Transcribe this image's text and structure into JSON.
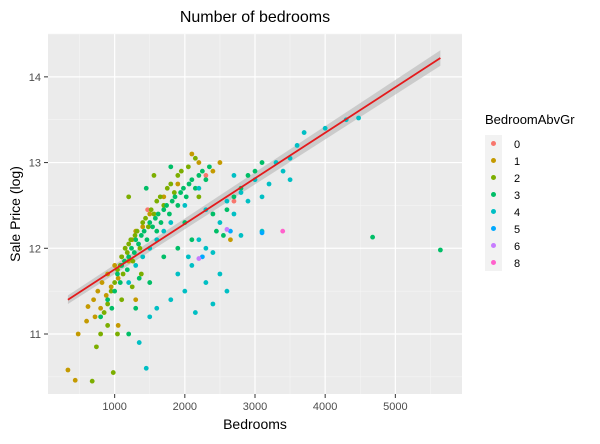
{
  "chart_data": {
    "type": "scatter",
    "title": "Number of bedrooms",
    "xlabel": "Bedrooms",
    "ylabel": "Sale Price (log)",
    "xlim": [
      50,
      5950
    ],
    "ylim": [
      10.3,
      14.5
    ],
    "x_ticks": [
      1000,
      2000,
      3000,
      4000,
      5000
    ],
    "y_ticks": [
      11,
      12,
      13,
      14
    ],
    "grid": true,
    "legend": {
      "title": "BedroomAbvGr",
      "placement": "right",
      "entries": [
        {
          "label": "0",
          "color": "#F8766D"
        },
        {
          "label": "1",
          "color": "#C49A00"
        },
        {
          "label": "2",
          "color": "#7CAE00"
        },
        {
          "label": "3",
          "color": "#00BE67"
        },
        {
          "label": "4",
          "color": "#00BFC4"
        },
        {
          "label": "5",
          "color": "#00A9FF"
        },
        {
          "label": "6",
          "color": "#C77CFF"
        },
        {
          "label": "8",
          "color": "#FF61CC"
        }
      ]
    },
    "regression": {
      "color": "#E41A1C",
      "x": [
        334,
        5642
      ],
      "y": [
        11.4,
        14.22
      ],
      "band_halfwidth_start": 0.05,
      "band_halfwidth_end": 0.09
    },
    "series": [
      {
        "name": "0",
        "color": "#F8766D",
        "points": [
          [
            1470,
            12.45
          ],
          [
            2300,
            12.85
          ],
          [
            2700,
            12.55
          ]
        ]
      },
      {
        "name": "1",
        "color": "#C49A00",
        "points": [
          [
            334,
            10.58
          ],
          [
            438,
            10.46
          ],
          [
            480,
            11.0
          ],
          [
            600,
            11.15
          ],
          [
            620,
            11.32
          ],
          [
            700,
            11.4
          ],
          [
            720,
            11.2
          ],
          [
            760,
            11.5
          ],
          [
            800,
            11.3
          ],
          [
            820,
            11.6
          ],
          [
            880,
            11.45
          ],
          [
            900,
            11.7
          ],
          [
            950,
            11.55
          ],
          [
            1000,
            11.8
          ],
          [
            1050,
            11.65
          ],
          [
            1100,
            11.9
          ],
          [
            1150,
            12.0
          ],
          [
            1200,
            11.85
          ],
          [
            1250,
            12.1
          ],
          [
            1300,
            12.2
          ],
          [
            1400,
            12.25
          ],
          [
            1500,
            12.4
          ],
          [
            1700,
            12.6
          ],
          [
            1900,
            12.75
          ],
          [
            2100,
            13.1
          ],
          [
            2200,
            13.0
          ],
          [
            2400,
            12.9
          ],
          [
            2500,
            13.0
          ],
          [
            2650,
            12.1
          ],
          [
            1300,
            11.4
          ],
          [
            1050,
            11.1
          ]
        ]
      },
      {
        "name": "2",
        "color": "#7CAE00",
        "points": [
          [
            680,
            10.45
          ],
          [
            740,
            10.85
          ],
          [
            800,
            11.0
          ],
          [
            850,
            11.25
          ],
          [
            900,
            11.35
          ],
          [
            950,
            11.5
          ],
          [
            980,
            10.55
          ],
          [
            1000,
            11.6
          ],
          [
            1040,
            11.75
          ],
          [
            1080,
            11.8
          ],
          [
            1100,
            11.9
          ],
          [
            1120,
            11.7
          ],
          [
            1150,
            12.0
          ],
          [
            1180,
            11.95
          ],
          [
            1200,
            12.05
          ],
          [
            1230,
            12.1
          ],
          [
            1260,
            11.85
          ],
          [
            1290,
            12.15
          ],
          [
            1320,
            12.2
          ],
          [
            1360,
            12.0
          ],
          [
            1400,
            12.3
          ],
          [
            1440,
            12.35
          ],
          [
            1480,
            12.25
          ],
          [
            1520,
            12.45
          ],
          [
            1560,
            12.4
          ],
          [
            1600,
            12.55
          ],
          [
            1650,
            12.6
          ],
          [
            1700,
            12.5
          ],
          [
            1750,
            12.7
          ],
          [
            1800,
            12.75
          ],
          [
            1850,
            12.65
          ],
          [
            1900,
            12.85
          ],
          [
            1950,
            12.9
          ],
          [
            2050,
            12.95
          ],
          [
            2150,
            13.05
          ],
          [
            2200,
            12.6
          ],
          [
            1250,
            11.55
          ],
          [
            1100,
            11.4
          ],
          [
            1380,
            11.7
          ],
          [
            1200,
            12.6
          ],
          [
            1560,
            12.85
          ],
          [
            1040,
            11.0
          ],
          [
            900,
            11.1
          ]
        ]
      },
      {
        "name": "3",
        "color": "#00BE67",
        "points": [
          [
            800,
            11.2
          ],
          [
            900,
            11.4
          ],
          [
            960,
            11.3
          ],
          [
            1000,
            11.5
          ],
          [
            1040,
            11.7
          ],
          [
            1080,
            11.6
          ],
          [
            1100,
            11.8
          ],
          [
            1140,
            11.85
          ],
          [
            1180,
            11.75
          ],
          [
            1200,
            11.9
          ],
          [
            1240,
            12.0
          ],
          [
            1280,
            11.95
          ],
          [
            1300,
            12.1
          ],
          [
            1340,
            12.05
          ],
          [
            1380,
            12.15
          ],
          [
            1420,
            12.2
          ],
          [
            1460,
            12.1
          ],
          [
            1500,
            12.3
          ],
          [
            1540,
            12.25
          ],
          [
            1580,
            12.35
          ],
          [
            1620,
            12.4
          ],
          [
            1660,
            12.3
          ],
          [
            1700,
            12.45
          ],
          [
            1740,
            12.5
          ],
          [
            1780,
            12.4
          ],
          [
            1820,
            12.55
          ],
          [
            1860,
            12.6
          ],
          [
            1900,
            12.5
          ],
          [
            1940,
            12.65
          ],
          [
            1980,
            12.7
          ],
          [
            2020,
            12.6
          ],
          [
            2060,
            12.75
          ],
          [
            2100,
            12.8
          ],
          [
            2150,
            12.7
          ],
          [
            2200,
            12.85
          ],
          [
            2250,
            12.9
          ],
          [
            2300,
            12.8
          ],
          [
            2350,
            12.95
          ],
          [
            2400,
            12.4
          ],
          [
            2450,
            12.2
          ],
          [
            2550,
            12.15
          ],
          [
            2600,
            12.45
          ],
          [
            2700,
            12.6
          ],
          [
            2800,
            12.7
          ],
          [
            2900,
            12.85
          ],
          [
            3000,
            12.9
          ],
          [
            3100,
            13.0
          ],
          [
            1300,
            11.3
          ],
          [
            1500,
            11.6
          ],
          [
            1700,
            11.9
          ],
          [
            1900,
            12.0
          ],
          [
            2100,
            12.1
          ],
          [
            1200,
            11.0
          ],
          [
            1600,
            12.2
          ],
          [
            1350,
            11.65
          ],
          [
            4676,
            12.13
          ],
          [
            5642,
            11.98
          ],
          [
            1800,
            12.95
          ],
          [
            1450,
            12.7
          ],
          [
            2000,
            12.3
          ]
        ]
      },
      {
        "name": "4",
        "color": "#00BFC4",
        "points": [
          [
            1200,
            11.6
          ],
          [
            1300,
            11.8
          ],
          [
            1400,
            11.9
          ],
          [
            1500,
            12.0
          ],
          [
            1600,
            12.1
          ],
          [
            1700,
            12.2
          ],
          [
            1800,
            12.3
          ],
          [
            1900,
            11.7
          ],
          [
            2000,
            12.5
          ],
          [
            2050,
            11.9
          ],
          [
            2100,
            11.8
          ],
          [
            2200,
            12.1
          ],
          [
            2300,
            12.0
          ],
          [
            2400,
            11.95
          ],
          [
            2500,
            12.3
          ],
          [
            2600,
            12.55
          ],
          [
            2700,
            12.4
          ],
          [
            2800,
            12.65
          ],
          [
            2900,
            12.55
          ],
          [
            3000,
            12.8
          ],
          [
            3100,
            12.2
          ],
          [
            3200,
            12.75
          ],
          [
            3300,
            13.0
          ],
          [
            3400,
            12.9
          ],
          [
            3500,
            13.05
          ],
          [
            3600,
            13.2
          ],
          [
            3700,
            13.35
          ],
          [
            4000,
            13.4
          ],
          [
            4300,
            13.5
          ],
          [
            4476,
            13.52
          ],
          [
            2800,
            12.15
          ],
          [
            2500,
            11.7
          ],
          [
            2300,
            11.6
          ],
          [
            2000,
            11.5
          ],
          [
            1800,
            11.4
          ],
          [
            1600,
            11.3
          ],
          [
            1500,
            11.2
          ],
          [
            1450,
            10.6
          ],
          [
            1350,
            10.9
          ],
          [
            2400,
            11.35
          ],
          [
            2600,
            11.5
          ],
          [
            3500,
            12.8
          ],
          [
            2200,
            12.7
          ],
          [
            2700,
            12.85
          ],
          [
            3100,
            12.6
          ],
          [
            2150,
            11.25
          ],
          [
            2300,
            12.45
          ]
        ]
      },
      {
        "name": "5",
        "color": "#00A9FF",
        "points": [
          [
            2250,
            11.9
          ],
          [
            2650,
            12.2
          ],
          [
            3100,
            12.18
          ]
        ]
      },
      {
        "name": "6",
        "color": "#C77CFF",
        "points": [
          [
            2200,
            11.88
          ],
          [
            2600,
            12.22
          ]
        ]
      },
      {
        "name": "8",
        "color": "#FF61CC",
        "points": [
          [
            3395,
            12.2
          ]
        ]
      }
    ]
  }
}
